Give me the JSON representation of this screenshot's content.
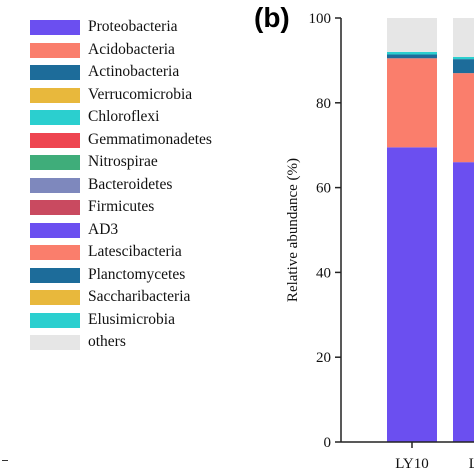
{
  "panel_label": "(b)",
  "chart_data": {
    "type": "bar",
    "stacked": true,
    "ylabel": "Relative abundance (%)",
    "ylim": [
      0,
      100
    ],
    "yticks": [
      0,
      20,
      40,
      60,
      80,
      100
    ],
    "categories": [
      "LY10",
      "LY"
    ],
    "legend": [
      {
        "name": "Proteobacteria",
        "color": "#6b4ff0"
      },
      {
        "name": "Acidobacteria",
        "color": "#fa7e6c"
      },
      {
        "name": "Actinobacteria",
        "color": "#1d6c9a"
      },
      {
        "name": "Verrucomicrobia",
        "color": "#e8b83c"
      },
      {
        "name": "Chloroflexi",
        "color": "#2bcfcf"
      },
      {
        "name": "Gemmatimonadetes",
        "color": "#ee4550"
      },
      {
        "name": "Nitrospirae",
        "color": "#3fad7a"
      },
      {
        "name": "Bacteroidetes",
        "color": "#7e88bd"
      },
      {
        "name": "Firmicutes",
        "color": "#c94a60"
      },
      {
        "name": "AD3",
        "color": "#6b4ff0"
      },
      {
        "name": "Latescibacteria",
        "color": "#fa7e6c"
      },
      {
        "name": "Planctomycetes",
        "color": "#1d6c9a"
      },
      {
        "name": "Saccharibacteria",
        "color": "#e8b83c"
      },
      {
        "name": "Elusimicrobia",
        "color": "#2bcfcf"
      },
      {
        "name": "others",
        "color": "#e6e6e6"
      }
    ],
    "series": [
      {
        "name": "Proteobacteria",
        "color": "#6b4ff0",
        "values": [
          69.5,
          66.0
        ]
      },
      {
        "name": "Acidobacteria",
        "color": "#fa7e6c",
        "values": [
          21.0,
          21.0
        ]
      },
      {
        "name": "Actinobacteria",
        "color": "#1d6c9a",
        "values": [
          0.9,
          3.3
        ]
      },
      {
        "name": "Chloroflexi",
        "color": "#2bcfcf",
        "values": [
          0.6,
          0.5
        ]
      },
      {
        "name": "others",
        "color": "#e6e6e6",
        "values": [
          8.0,
          9.2
        ]
      }
    ]
  }
}
